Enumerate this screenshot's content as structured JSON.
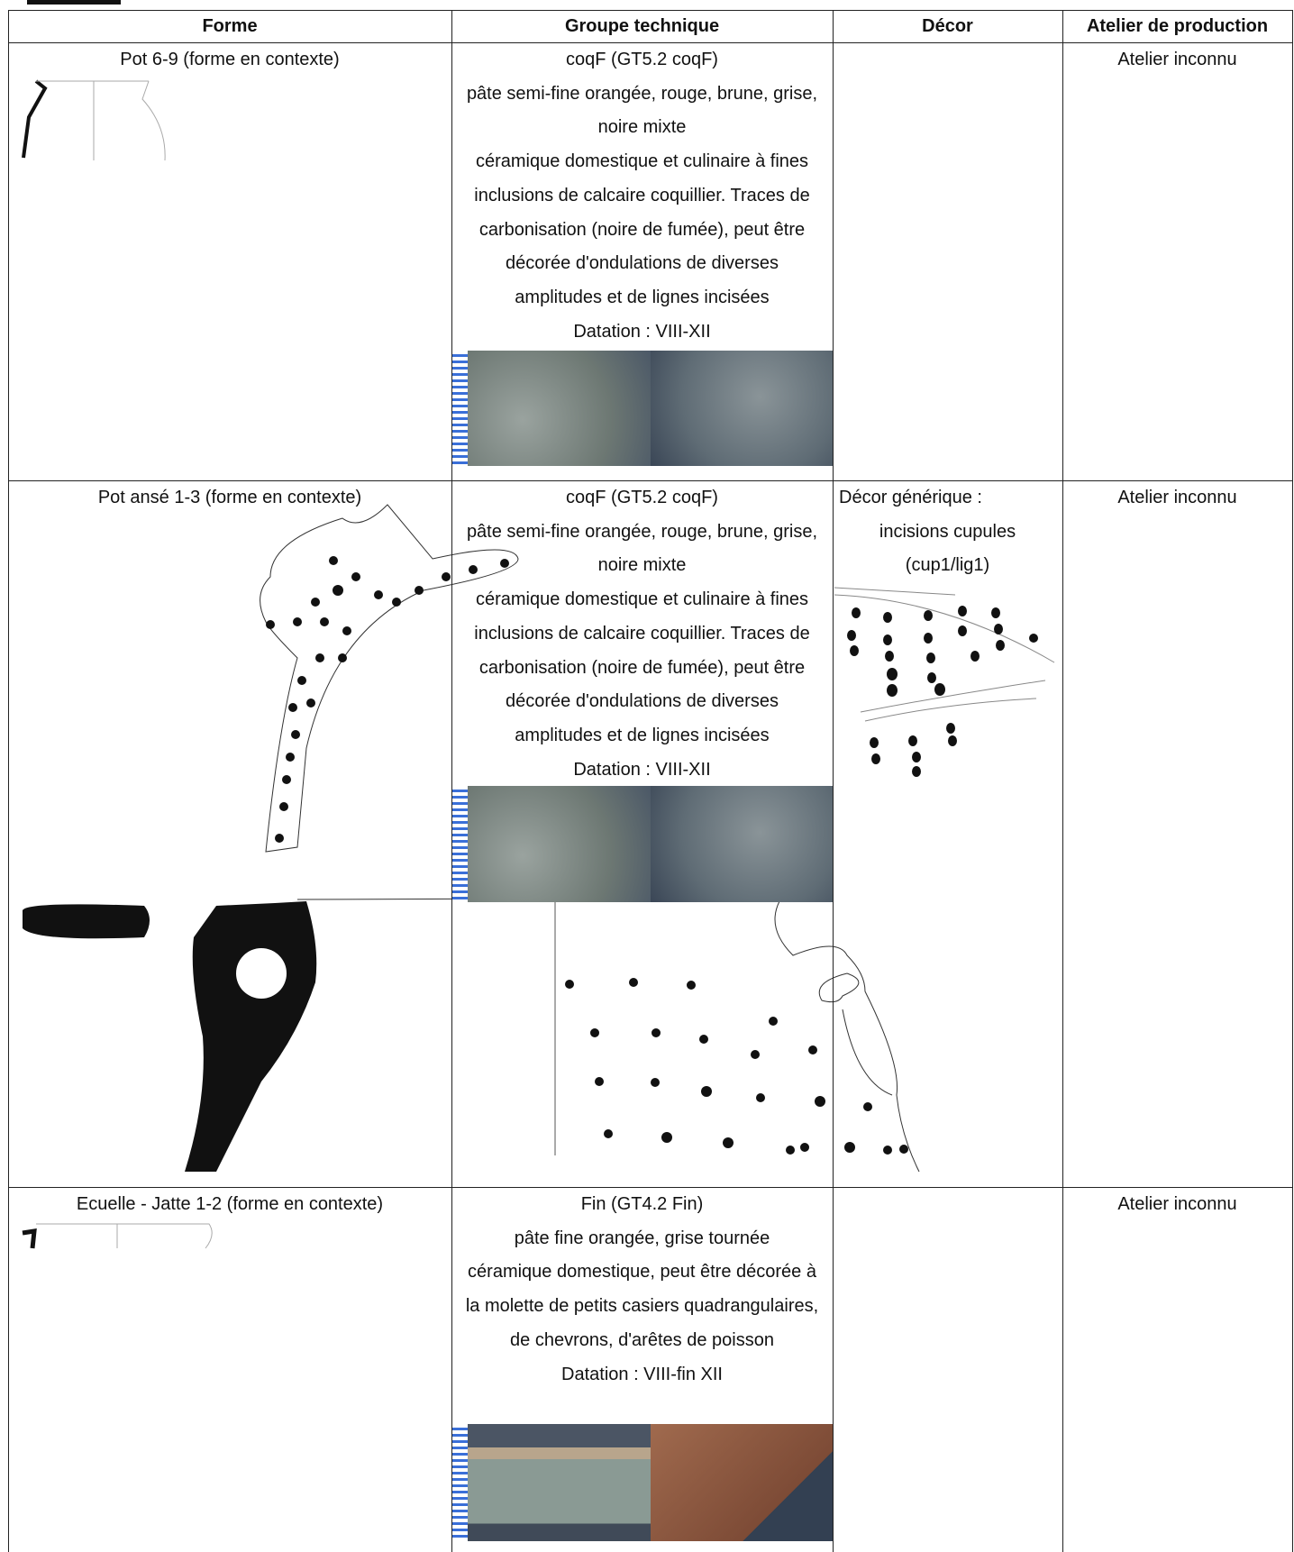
{
  "header": {
    "columns": [
      "Forme",
      "Groupe technique",
      "Décor",
      "Atelier de production"
    ]
  },
  "table": {
    "rows": [
      {
        "forme": "Pot 6-9 (forme  en contexte)",
        "groupe": [
          "coqF (GT5.2 coqF)",
          "pâte semi-fine orangée, rouge, brune, grise, noire mixte",
          "céramique domestique et culinaire à fines inclusions de calcaire coquillier. Traces de carbonisation (noire de fumée), peut être décorée d'ondulations de diverses amplitudes et de lignes incisées",
          "Datation : VIII-XII"
        ],
        "decor": [],
        "atelier": "Atelier inconnu"
      },
      {
        "forme": "Pot ansé 1-3 (forme  en contexte)",
        "groupe": [
          "coqF (GT5.2 coqF)",
          "pâte semi-fine orangée, rouge, brune, grise, noire mixte",
          "céramique domestique et culinaire à fines inclusions de calcaire coquillier. Traces de carbonisation (noire de fumée), peut être décorée d'ondulations de diverses amplitudes et de lignes incisées",
          "Datation : VIII-XII"
        ],
        "decor": [
          "Décor générique :",
          "incisions cupules",
          "(cup1/lig1)"
        ],
        "atelier": "Atelier inconnu"
      },
      {
        "forme": "Ecuelle - Jatte 1-2 (forme  en contexte)",
        "groupe": [
          "Fin (GT4.2 Fin)",
          "pâte fine orangée, grise tournée",
          "céramique domestique, peut être décorée à la molette de petits casiers quadrangulaires, de chevrons, d'arêtes de poisson",
          "Datation : VIII-fin XII"
        ],
        "decor": [],
        "atelier": "Atelier inconnu"
      }
    ]
  }
}
